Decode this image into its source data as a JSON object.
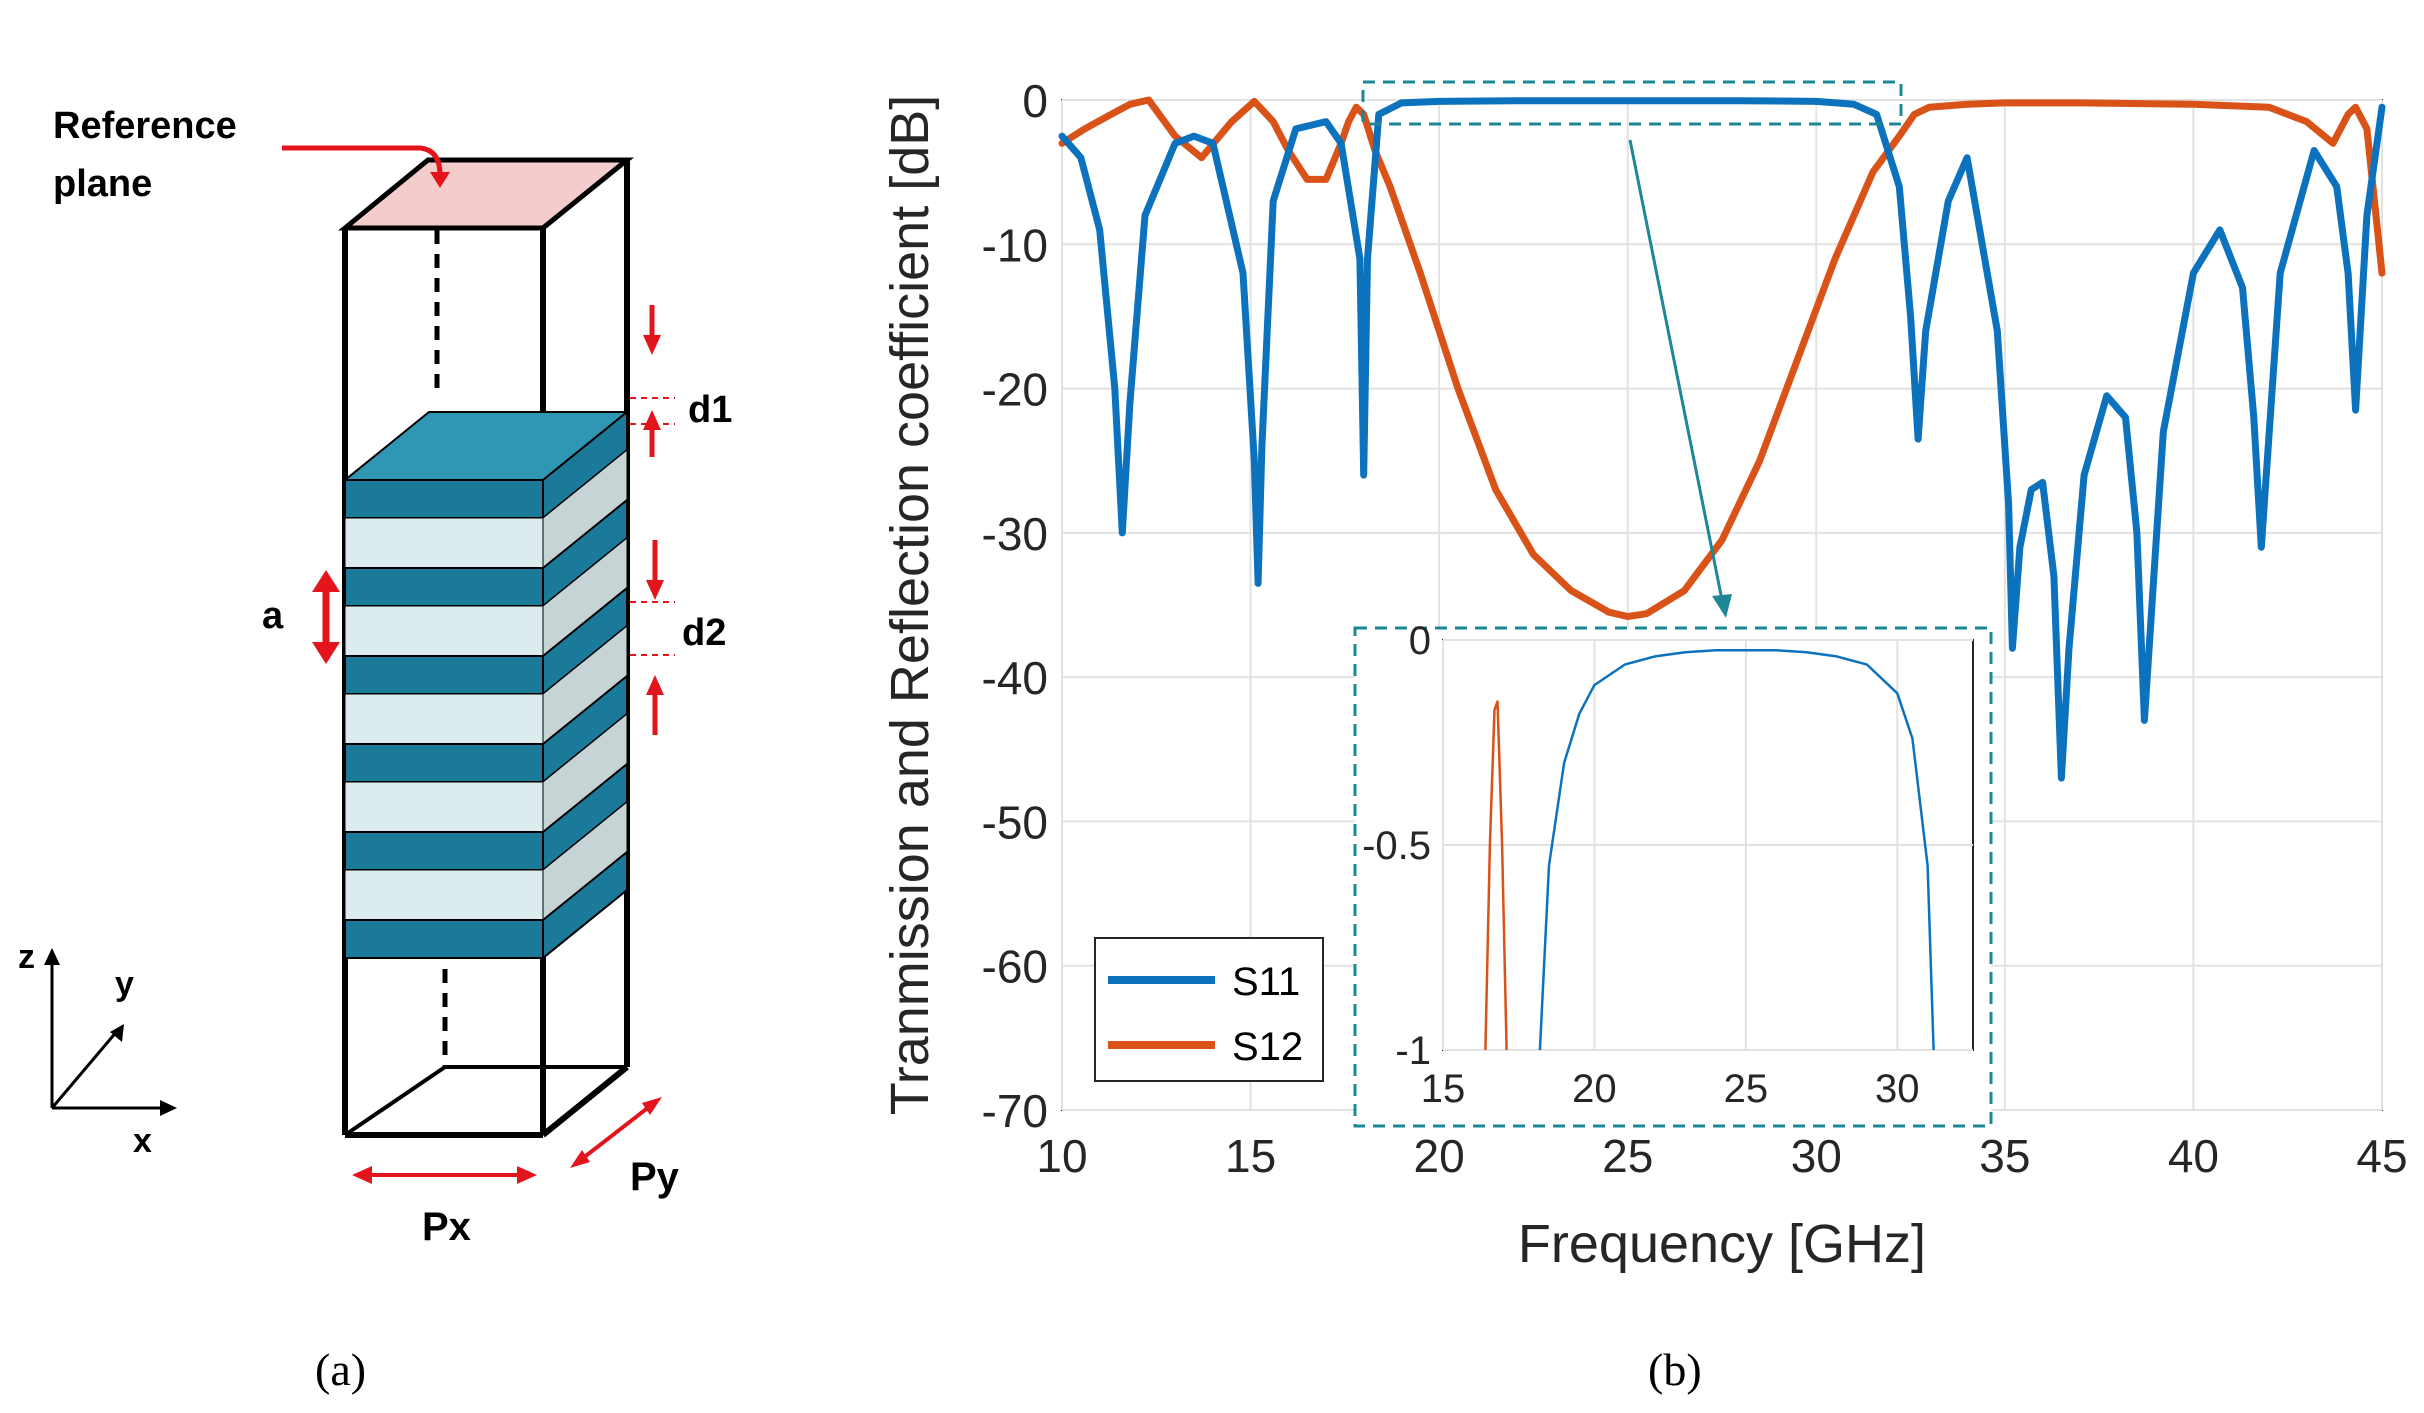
{
  "panel_a": {
    "labels": {
      "reference_plane_line1": "Reference",
      "reference_plane_line2": "plane",
      "d1": "d1",
      "d2": "d2",
      "a": "a",
      "px": "Px",
      "py": "Py",
      "axis_z": "z",
      "axis_y": "y",
      "axis_x": "x"
    },
    "caption": "(a)",
    "colors": {
      "layer": "#1b7a99",
      "layer_top": "#2f97b3",
      "spacer": "#dcecee",
      "arrow": "#e3141b",
      "reference": "#f3c9c9"
    }
  },
  "panel_b": {
    "caption": "(b)"
  },
  "chart_data": {
    "type": "line",
    "title": "",
    "xlabel": "Frequency [GHz]",
    "ylabel": "Tranmission and Reflection coefficient [dB]",
    "xlim": [
      10,
      45
    ],
    "ylim": [
      -70,
      0
    ],
    "xticks": [
      10,
      15,
      20,
      25,
      30,
      35,
      40,
      45
    ],
    "yticks": [
      0,
      -10,
      -20,
      -30,
      -40,
      -50,
      -60,
      -70
    ],
    "grid": true,
    "legend_position": "bottom-left",
    "series": [
      {
        "name": "S11",
        "color": "#0c72bd",
        "x": [
          10,
          10.5,
          11,
          11.4,
          11.6,
          11.8,
          12.2,
          13,
          13.5,
          14,
          14.8,
          15.1,
          15.2,
          15.3,
          15.6,
          16.2,
          17,
          17.4,
          17.9,
          18.0,
          18.1,
          18.4,
          19,
          20,
          22,
          25,
          28,
          30,
          31,
          31.6,
          32.2,
          32.5,
          32.7,
          32.9,
          33.5,
          34,
          34.8,
          35.1,
          35.2,
          35.4,
          35.7,
          36.0,
          36.3,
          36.5,
          36.7,
          37.1,
          37.7,
          38.2,
          38.5,
          38.7,
          39.2,
          40,
          40.7,
          41.3,
          41.6,
          41.8,
          42.3,
          43.2,
          43.8,
          44.1,
          44.3,
          44.6,
          45
        ],
        "values": [
          -2.5,
          -4,
          -9,
          -20,
          -30,
          -21,
          -8,
          -3,
          -2.5,
          -3,
          -12,
          -25,
          -33.5,
          -24,
          -7,
          -2,
          -1.5,
          -3,
          -11,
          -26,
          -11,
          -1,
          -0.2,
          -0.1,
          -0.05,
          -0.05,
          -0.05,
          -0.1,
          -0.3,
          -1,
          -6,
          -15,
          -23.5,
          -16,
          -7,
          -4,
          -16,
          -28,
          -38,
          -31,
          -27,
          -26.5,
          -33,
          -47,
          -38,
          -26,
          -20.5,
          -22,
          -30,
          -43,
          -23,
          -12,
          -9,
          -13,
          -22,
          -31,
          -12,
          -3.5,
          -6,
          -12,
          -21.5,
          -8,
          -0.5
        ]
      },
      {
        "name": "S12",
        "color": "#d95319",
        "x": [
          10,
          10.6,
          11.3,
          11.8,
          12.3,
          13,
          13.7,
          14.5,
          15.1,
          15.6,
          16,
          16.5,
          17,
          17.4,
          17.6,
          17.8,
          18.0,
          18.3,
          18.7,
          19.5,
          20.5,
          21.5,
          22.5,
          23.5,
          24.5,
          25,
          25.5,
          26.5,
          27.5,
          28.5,
          29.5,
          30.5,
          31.5,
          32.2,
          32.6,
          33,
          34,
          35,
          37,
          40,
          42,
          43,
          43.7,
          44.1,
          44.3,
          44.6,
          45
        ],
        "values": [
          -3,
          -2,
          -1,
          -0.3,
          0,
          -2.5,
          -4,
          -1.5,
          -0.1,
          -1.5,
          -3.5,
          -5.5,
          -5.5,
          -3,
          -1.5,
          -0.5,
          -1,
          -3.5,
          -6,
          -12,
          -20,
          -27,
          -31.5,
          -34,
          -35.5,
          -35.8,
          -35.6,
          -34,
          -30.5,
          -25,
          -18,
          -11,
          -5,
          -2.5,
          -1,
          -0.5,
          -0.3,
          -0.2,
          -0.2,
          -0.3,
          -0.5,
          -1.5,
          -3,
          -1,
          -0.5,
          -2,
          -12
        ]
      }
    ],
    "inset": {
      "xlim": [
        15,
        32.5
      ],
      "ylim": [
        -1,
        0
      ],
      "xticks": [
        15,
        20,
        25,
        30
      ],
      "yticks": [
        0,
        -0.5,
        -1
      ],
      "series": [
        {
          "name": "S11",
          "color": "#0c72bd",
          "x": [
            18.2,
            18.5,
            19,
            19.5,
            20,
            21,
            22,
            23,
            24,
            25,
            26,
            27,
            28,
            29,
            30,
            30.5,
            31,
            31.2
          ],
          "values": [
            -1,
            -0.55,
            -0.3,
            -0.18,
            -0.11,
            -0.06,
            -0.04,
            -0.03,
            -0.025,
            -0.025,
            -0.025,
            -0.03,
            -0.04,
            -0.06,
            -0.13,
            -0.24,
            -0.55,
            -1
          ]
        },
        {
          "name": "S12",
          "color": "#d95319",
          "x": [
            16.4,
            16.55,
            16.7,
            16.8,
            16.95,
            17.1
          ],
          "values": [
            -1,
            -0.5,
            -0.17,
            -0.15,
            -0.5,
            -1
          ]
        }
      ]
    }
  }
}
